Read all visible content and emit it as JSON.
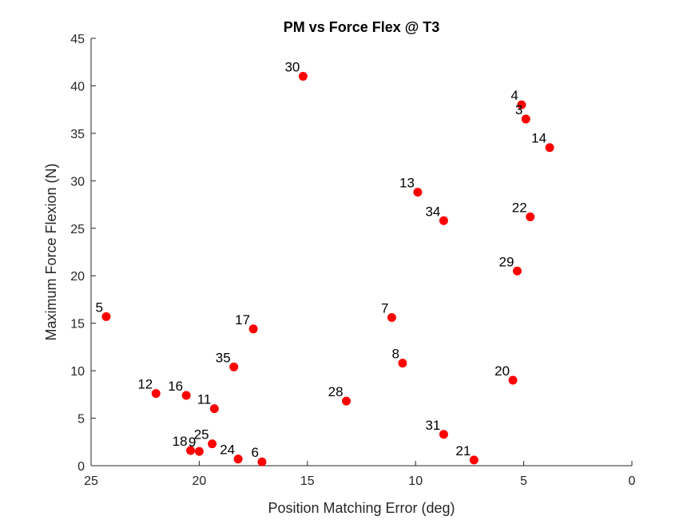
{
  "chart_data": {
    "type": "scatter",
    "title": "PM vs Force Flex @ T3",
    "xlabel": "Position Matching Error (deg)",
    "ylabel": "Maximum Force Flexion (N)",
    "xlim": [
      0,
      25
    ],
    "x_reversed": true,
    "ylim": [
      0,
      45
    ],
    "xticks": [
      25,
      20,
      15,
      10,
      5,
      0
    ],
    "yticks": [
      0,
      5,
      10,
      15,
      20,
      25,
      30,
      35,
      40,
      45
    ],
    "grid": false,
    "marker_color": "#ff0000",
    "points": [
      {
        "label": "30",
        "x": 15.2,
        "y": 41.0
      },
      {
        "label": "4",
        "x": 5.1,
        "y": 38.0
      },
      {
        "label": "3",
        "x": 4.9,
        "y": 36.5
      },
      {
        "label": "14",
        "x": 3.8,
        "y": 33.5
      },
      {
        "label": "13",
        "x": 9.9,
        "y": 28.8
      },
      {
        "label": "34",
        "x": 8.7,
        "y": 25.8
      },
      {
        "label": "22",
        "x": 4.7,
        "y": 26.2
      },
      {
        "label": "29",
        "x": 5.3,
        "y": 20.5
      },
      {
        "label": "5",
        "x": 24.3,
        "y": 15.7
      },
      {
        "label": "17",
        "x": 17.5,
        "y": 14.4
      },
      {
        "label": "7",
        "x": 11.1,
        "y": 15.6
      },
      {
        "label": "35",
        "x": 18.4,
        "y": 10.4
      },
      {
        "label": "8",
        "x": 10.6,
        "y": 10.8
      },
      {
        "label": "20",
        "x": 5.5,
        "y": 9.0
      },
      {
        "label": "12",
        "x": 22.0,
        "y": 7.6
      },
      {
        "label": "16",
        "x": 20.6,
        "y": 7.4
      },
      {
        "label": "11",
        "x": 19.3,
        "y": 6.0
      },
      {
        "label": "28",
        "x": 13.2,
        "y": 6.8
      },
      {
        "label": "31",
        "x": 8.7,
        "y": 3.3
      },
      {
        "label": "25",
        "x": 19.4,
        "y": 2.3
      },
      {
        "label": "18",
        "x": 20.4,
        "y": 1.6
      },
      {
        "label": "9",
        "x": 20.0,
        "y": 1.5
      },
      {
        "label": "24",
        "x": 18.2,
        "y": 0.7
      },
      {
        "label": "6",
        "x": 17.1,
        "y": 0.4
      },
      {
        "label": "21",
        "x": 7.3,
        "y": 0.6
      }
    ]
  }
}
